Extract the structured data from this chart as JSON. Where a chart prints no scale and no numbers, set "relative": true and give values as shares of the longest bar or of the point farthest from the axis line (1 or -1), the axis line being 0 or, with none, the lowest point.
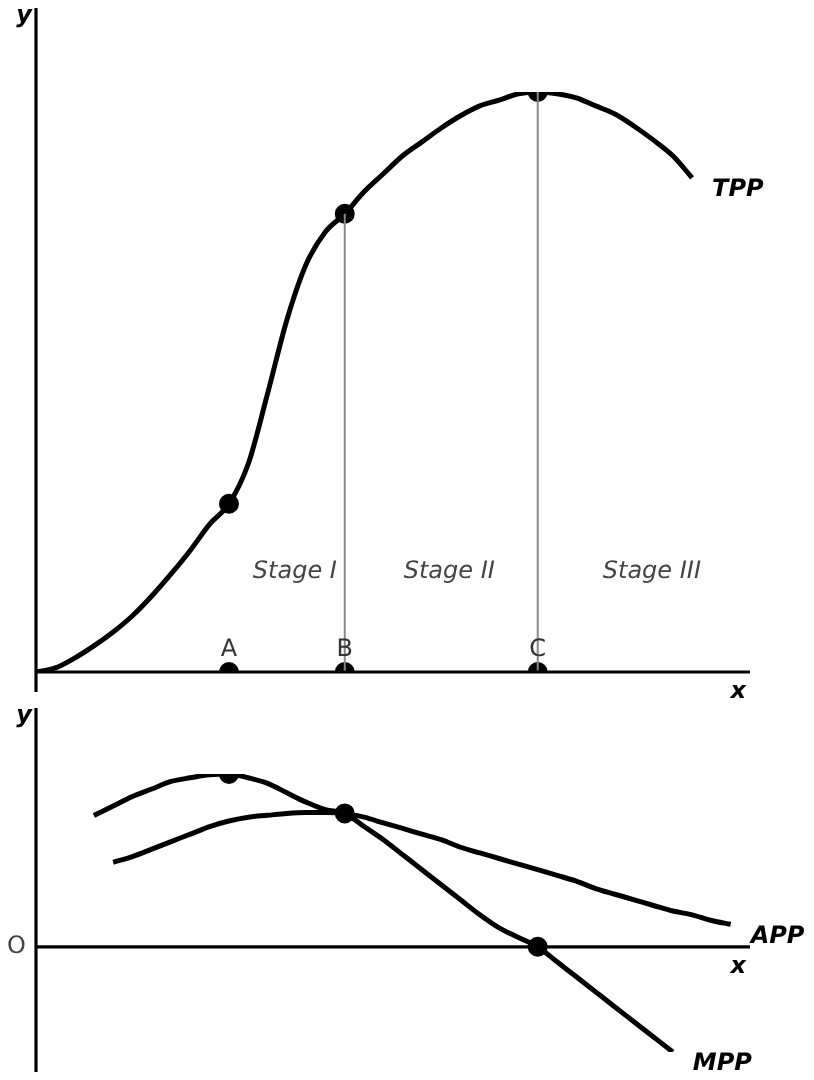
{
  "chart_data": [
    {
      "type": "line",
      "relative": true,
      "xlabel": "x",
      "ylabel": "y",
      "categories": [
        null,
        null,
        null,
        null,
        null,
        null,
        null,
        null,
        null,
        null,
        "A",
        null,
        null,
        null,
        null,
        null,
        "B",
        null,
        null,
        null,
        null,
        null,
        null,
        null,
        null,
        null,
        "C",
        null,
        null,
        null,
        null,
        null,
        null,
        null,
        null,
        null,
        null,
        null
      ],
      "series": [
        {
          "name": "TPP",
          "type": "line",
          "color": "#000000",
          "values": [
            0,
            0.007,
            0.024,
            0.045,
            0.069,
            0.097,
            0.131,
            0.169,
            0.21,
            0.255,
            0.29,
            0.359,
            0.48,
            0.607,
            0.703,
            0.759,
            0.79,
            0.828,
            0.859,
            0.89,
            0.914,
            0.938,
            0.959,
            0.976,
            0.986,
            0.997,
            1,
            0.997,
            0.99,
            0.976,
            0.962,
            0.941,
            0.917,
            0.89,
            0.852,
            null,
            null,
            null
          ]
        },
        {
          "type": "scatter",
          "marker": "circle",
          "color": "#000000",
          "x": [
            "A",
            "B",
            "C",
            "A",
            "B",
            "C"
          ],
          "values": [
            0.29,
            0.79,
            1,
            0,
            0,
            0
          ]
        }
      ],
      "ref_lines": [
        {
          "axis": "x",
          "value": "B",
          "color": "#888888"
        },
        {
          "axis": "x",
          "value": "C",
          "color": "#888888"
        }
      ],
      "annotations": [
        "Stage I",
        "Stage II",
        "Stage III"
      ]
    },
    {
      "type": "line",
      "relative": true,
      "xlabel": "x",
      "ylabel": "y",
      "categories": [
        null,
        null,
        null,
        null,
        null,
        null,
        null,
        null,
        null,
        null,
        null,
        null,
        null,
        null,
        null,
        null,
        null,
        null,
        null,
        null,
        null,
        null,
        null,
        null,
        null,
        null,
        null,
        null,
        null,
        null,
        null,
        null,
        null,
        null,
        null,
        null,
        null,
        null
      ],
      "series": [
        {
          "name": "APP",
          "type": "line",
          "color": "#000000",
          "values": [
            null,
            null,
            null,
            null,
            0.489,
            0.522,
            0.565,
            0.609,
            0.652,
            0.696,
            0.728,
            0.75,
            0.761,
            0.772,
            0.777,
            0.777,
            0.772,
            0.75,
            0.717,
            0.685,
            0.652,
            0.62,
            0.576,
            0.543,
            0.511,
            0.478,
            0.446,
            0.413,
            0.38,
            0.337,
            0.304,
            0.272,
            0.239,
            0.207,
            0.185,
            0.152,
            0.13,
            null
          ]
        },
        {
          "name": "MPP",
          "type": "line",
          "color": "#000000",
          "values": [
            null,
            null,
            null,
            0.76,
            0.815,
            0.87,
            0.913,
            0.957,
            0.978,
            0.995,
            1,
            0.978,
            0.946,
            0.891,
            0.837,
            0.793,
            0.772,
            0.696,
            0.62,
            0.533,
            0.446,
            0.359,
            0.272,
            0.185,
            0.109,
            0.054,
            0,
            -0.087,
            -0.174,
            -0.261,
            -0.348,
            -0.435,
            -0.522,
            -0.609,
            null,
            null,
            null,
            null
          ]
        },
        {
          "type": "scatter",
          "marker": "circle",
          "color": "#000000",
          "values": [
            null,
            null,
            null,
            null,
            null,
            null,
            null,
            null,
            null,
            null,
            1,
            null,
            null,
            null,
            null,
            null,
            0.772,
            null,
            null,
            null,
            null,
            null,
            null,
            null,
            null,
            null,
            0,
            null,
            null,
            null,
            null,
            null,
            null,
            null,
            null,
            null,
            null,
            null
          ]
        }
      ],
      "annotations": [
        "O"
      ]
    }
  ]
}
